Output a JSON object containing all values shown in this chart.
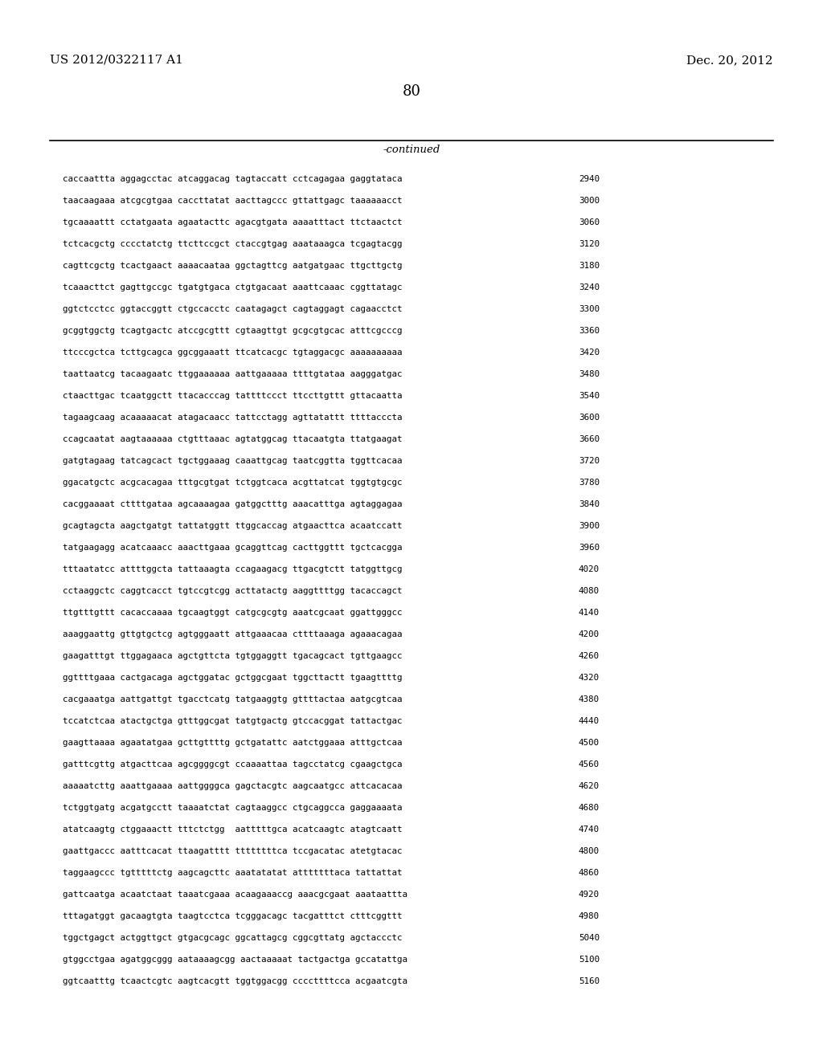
{
  "header_left": "US 2012/0322117 A1",
  "header_right": "Dec. 20, 2012",
  "page_number": "80",
  "continued_label": "-continued",
  "background_color": "#ffffff",
  "text_color": "#000000",
  "lines": [
    {
      "seq": "caccaattta aggagcctac atcaggacag tagtaccatt cctcagagaa gaggtataca",
      "num": "2940"
    },
    {
      "seq": "taacaagaaa atcgcgtgaa caccttatat aacttagccc gttattgagc taaaaaacct",
      "num": "3000"
    },
    {
      "seq": "tgcaaaattt cctatgaata agaatacttc agacgtgata aaaatttact ttctaactct",
      "num": "3060"
    },
    {
      "seq": "tctcacgctg cccctatctg ttcttccgct ctaccgtgag aaataaagca tcgagtacgg",
      "num": "3120"
    },
    {
      "seq": "cagttcgctg tcactgaact aaaacaataa ggctagttcg aatgatgaac ttgcttgctg",
      "num": "3180"
    },
    {
      "seq": "tcaaacttct gagttgccgc tgatgtgaca ctgtgacaat aaattcaaac cggttatagc",
      "num": "3240"
    },
    {
      "seq": "ggtctcctcc ggtaccggtt ctgccacctc caatagagct cagtaggagt cagaacctct",
      "num": "3300"
    },
    {
      "seq": "gcggtggctg tcagtgactc atccgcgttt cgtaagttgt gcgcgtgcac atttcgcccg",
      "num": "3360"
    },
    {
      "seq": "ttcccgctca tcttgcagca ggcggaaatt ttcatcacgc tgtaggacgc aaaaaaaaaa",
      "num": "3420"
    },
    {
      "seq": "taattaatcg tacaagaatc ttggaaaaaa aattgaaaaa ttttgtataa aagggatgac",
      "num": "3480"
    },
    {
      "seq": "ctaacttgac tcaatggctt ttacacccag tattttccct ttccttgttt gttacaatta",
      "num": "3540"
    },
    {
      "seq": "tagaagcaag acaaaaacat atagacaacc tattcctagg agttatattt ttttacccta",
      "num": "3600"
    },
    {
      "seq": "ccagcaatat aagtaaaaaa ctgtttaaac agtatggcag ttacaatgta ttatgaagat",
      "num": "3660"
    },
    {
      "seq": "gatgtagaag tatcagcact tgctggaaag caaattgcag taatcggtta tggttcacaa",
      "num": "3720"
    },
    {
      "seq": "ggacatgctc acgcacagaa tttgcgtgat tctggtcaca acgttatcat tggtgtgcgc",
      "num": "3780"
    },
    {
      "seq": "cacggaaaat cttttgataa agcaaaagaa gatggctttg aaacatttga agtaggagaa",
      "num": "3840"
    },
    {
      "seq": "gcagtagcta aagctgatgt tattatggtt ttggcaccag atgaacttca acaatccatt",
      "num": "3900"
    },
    {
      "seq": "tatgaagagg acatcaaacc aaacttgaaa gcaggttcag cacttggttt tgctcacgga",
      "num": "3960"
    },
    {
      "seq": "tttaatatcc attttggcta tattaaagta ccagaagacg ttgacgtctt tatggttgcg",
      "num": "4020"
    },
    {
      "seq": "cctaaggctc caggtcacct tgtccgtcgg acttatactg aaggttttgg tacaccagct",
      "num": "4080"
    },
    {
      "seq": "ttgtttgttt cacaccaaaa tgcaagtggt catgcgcgtg aaatcgcaat ggattgggcc",
      "num": "4140"
    },
    {
      "seq": "aaaggaattg gttgtgctcg agtgggaatt attgaaacaa cttttaaaga agaaacagaa",
      "num": "4200"
    },
    {
      "seq": "gaagatttgt ttggagaaca agctgttcta tgtggaggtt tgacagcact tgttgaagcc",
      "num": "4260"
    },
    {
      "seq": "ggttttgaaa cactgacaga agctggatac gctggcgaat tggcttactt tgaagttttg",
      "num": "4320"
    },
    {
      "seq": "cacgaaatga aattgattgt tgacctcatg tatgaaggtg gttttactaa aatgcgtcaa",
      "num": "4380"
    },
    {
      "seq": "tccatctcaa atactgctga gtttggcgat tatgtgactg gtccacggat tattactgac",
      "num": "4440"
    },
    {
      "seq": "gaagttaaaa agaatatgaa gcttgttttg gctgatattc aatctggaaa atttgctcaa",
      "num": "4500"
    },
    {
      "seq": "gatttcgttg atgacttcaa agcggggcgt ccaaaattaa tagcctatcg cgaagctgca",
      "num": "4560"
    },
    {
      "seq": "aaaaatcttg aaattgaaaa aattggggca gagctacgtc aagcaatgcc attcacacaa",
      "num": "4620"
    },
    {
      "seq": "tctggtgatg acgatgcctt taaaatctat cagtaaggcc ctgcaggcca gaggaaaata",
      "num": "4680"
    },
    {
      "seq": "atatcaagtg ctggaaactt tttctctgg  aatttttgca acatcaagtc atagtcaatt",
      "num": "4740"
    },
    {
      "seq": "gaattgaccc aatttcacat ttaagatttt ttttttttca tccgacatac atetgtacac",
      "num": "4800"
    },
    {
      "seq": "taggaagccc tgtttttctg aagcagcttc aaatatatat atttttttaca tattattat",
      "num": "4860"
    },
    {
      "seq": "gattcaatga acaatctaat taaatcgaaa acaagaaaccg aaacgcgaat aaataattta",
      "num": "4920"
    },
    {
      "seq": "tttagatggt gacaagtgta taagtcctca tcgggacagc tacgatttct ctttcggttt",
      "num": "4980"
    },
    {
      "seq": "tggctgagct actggttgct gtgacgcagc ggcattagcg cggcgttatg agctaccctc",
      "num": "5040"
    },
    {
      "seq": "gtggcctgaa agatggcggg aataaaagcgg aactaaaaat tactgactga gccatattga",
      "num": "5100"
    },
    {
      "seq": "ggtcaatttg tcaactcgtc aagtcacgtt tggtggacgg ccccttttcca acgaatcgta",
      "num": "5160"
    }
  ]
}
